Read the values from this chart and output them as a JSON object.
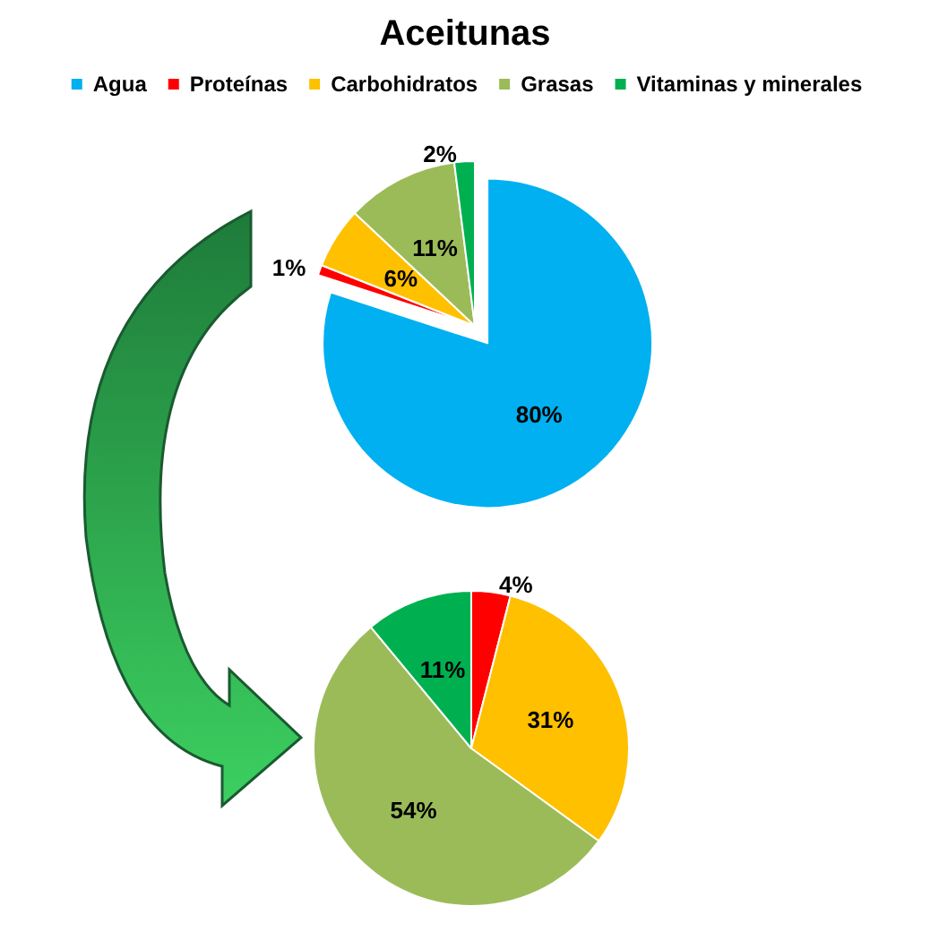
{
  "chart_data": [
    {
      "type": "pie",
      "title": "Aceitunas",
      "legend": "top",
      "categories": [
        "Agua",
        "Proteínas",
        "Carbohidratos",
        "Grasas",
        "Vitaminas y minerales"
      ],
      "values": [
        80,
        1,
        6,
        11,
        2
      ],
      "value_labels": [
        "80%",
        "1%",
        "6%",
        "11%",
        "2%"
      ],
      "colors": [
        "#00b0f0",
        "#ff0000",
        "#ffc000",
        "#9bbb59",
        "#00b050"
      ]
    },
    {
      "type": "pie",
      "categories": [
        null,
        null,
        null,
        null
      ],
      "values": [
        4,
        31,
        54,
        11
      ],
      "value_labels": [
        "4%",
        "31%",
        "54%",
        "11%"
      ],
      "colors": [
        "#ff0000",
        "#ffc000",
        "#9bbb59",
        "#00b050"
      ]
    }
  ]
}
